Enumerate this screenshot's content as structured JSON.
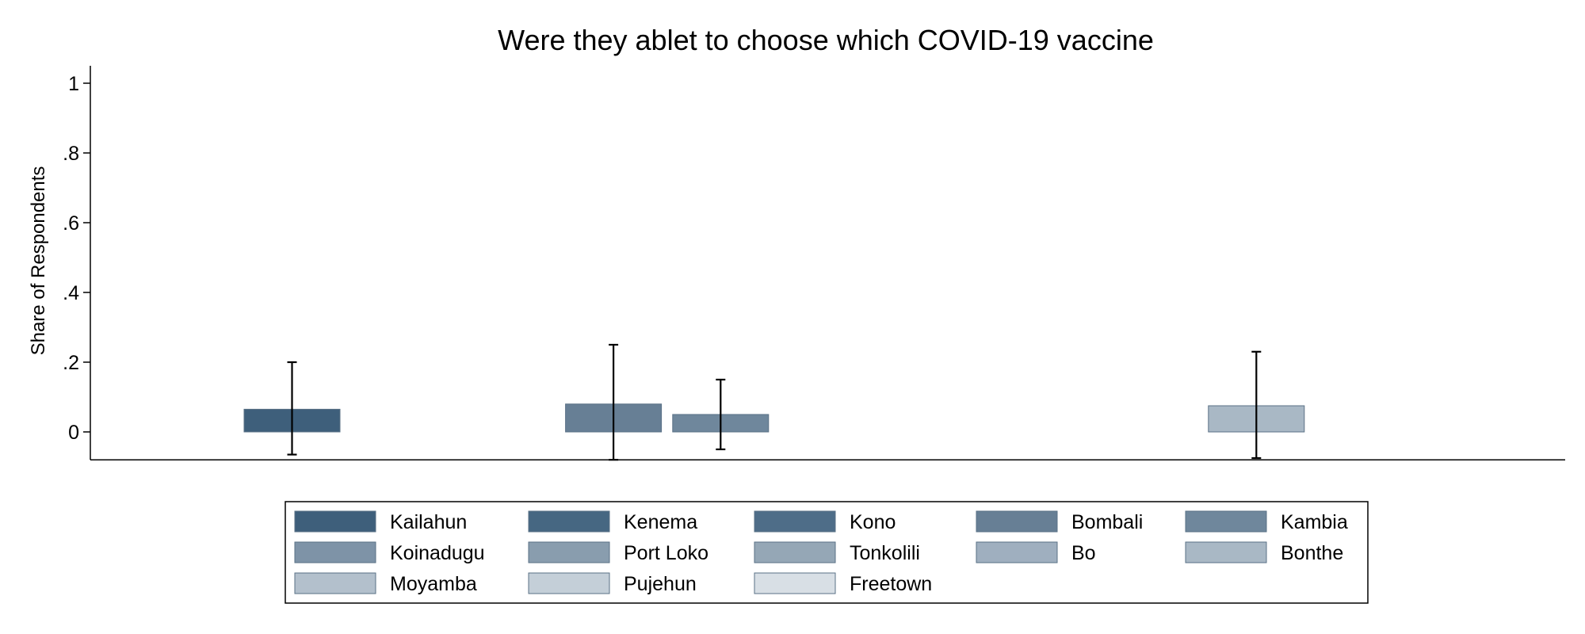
{
  "chart_data": {
    "type": "bar",
    "title": "Were they ablet to choose which COVID-19 vaccine",
    "ylabel": "Share of Respondents",
    "xlabel": "",
    "ylim": [
      -0.08,
      1.05
    ],
    "yticks": [
      0,
      0.2,
      0.4,
      0.6,
      0.8,
      1
    ],
    "ytick_labels": [
      "0",
      ".2",
      ".4",
      ".6",
      ".8",
      "1"
    ],
    "grid": false,
    "legend_position": "bottom",
    "series": [
      {
        "name": "Kailahun",
        "value": 0.065,
        "ci": [
          -0.065,
          0.2
        ],
        "color": "#3e5f7b"
      },
      {
        "name": "Kenema",
        "value": null,
        "ci": null,
        "color": "#466782"
      },
      {
        "name": "Kono",
        "value": null,
        "ci": null,
        "color": "#4e6d88"
      },
      {
        "name": "Bombali",
        "value": 0.08,
        "ci": [
          -0.08,
          0.25
        ],
        "color": "#677f95"
      },
      {
        "name": "Kambia",
        "value": 0.05,
        "ci": [
          -0.05,
          0.15
        ],
        "color": "#6f879c"
      },
      {
        "name": "Koinadugu",
        "value": null,
        "ci": null,
        "color": "#7e93a7"
      },
      {
        "name": "Port Loko",
        "value": null,
        "ci": null,
        "color": "#899dae"
      },
      {
        "name": "Tonkolili",
        "value": null,
        "ci": null,
        "color": "#95a7b6"
      },
      {
        "name": "Bo",
        "value": null,
        "ci": null,
        "color": "#9fafbf"
      },
      {
        "name": "Bonthe",
        "value": 0.075,
        "ci": [
          -0.075,
          0.23
        ],
        "color": "#a9b8c5"
      },
      {
        "name": "Moyamba",
        "value": null,
        "ci": null,
        "color": "#b3c0cc"
      },
      {
        "name": "Pujehun",
        "value": null,
        "ci": null,
        "color": "#c4cfd8"
      },
      {
        "name": "Freetown",
        "value": null,
        "ci": null,
        "color": "#d8dfe5"
      }
    ]
  }
}
